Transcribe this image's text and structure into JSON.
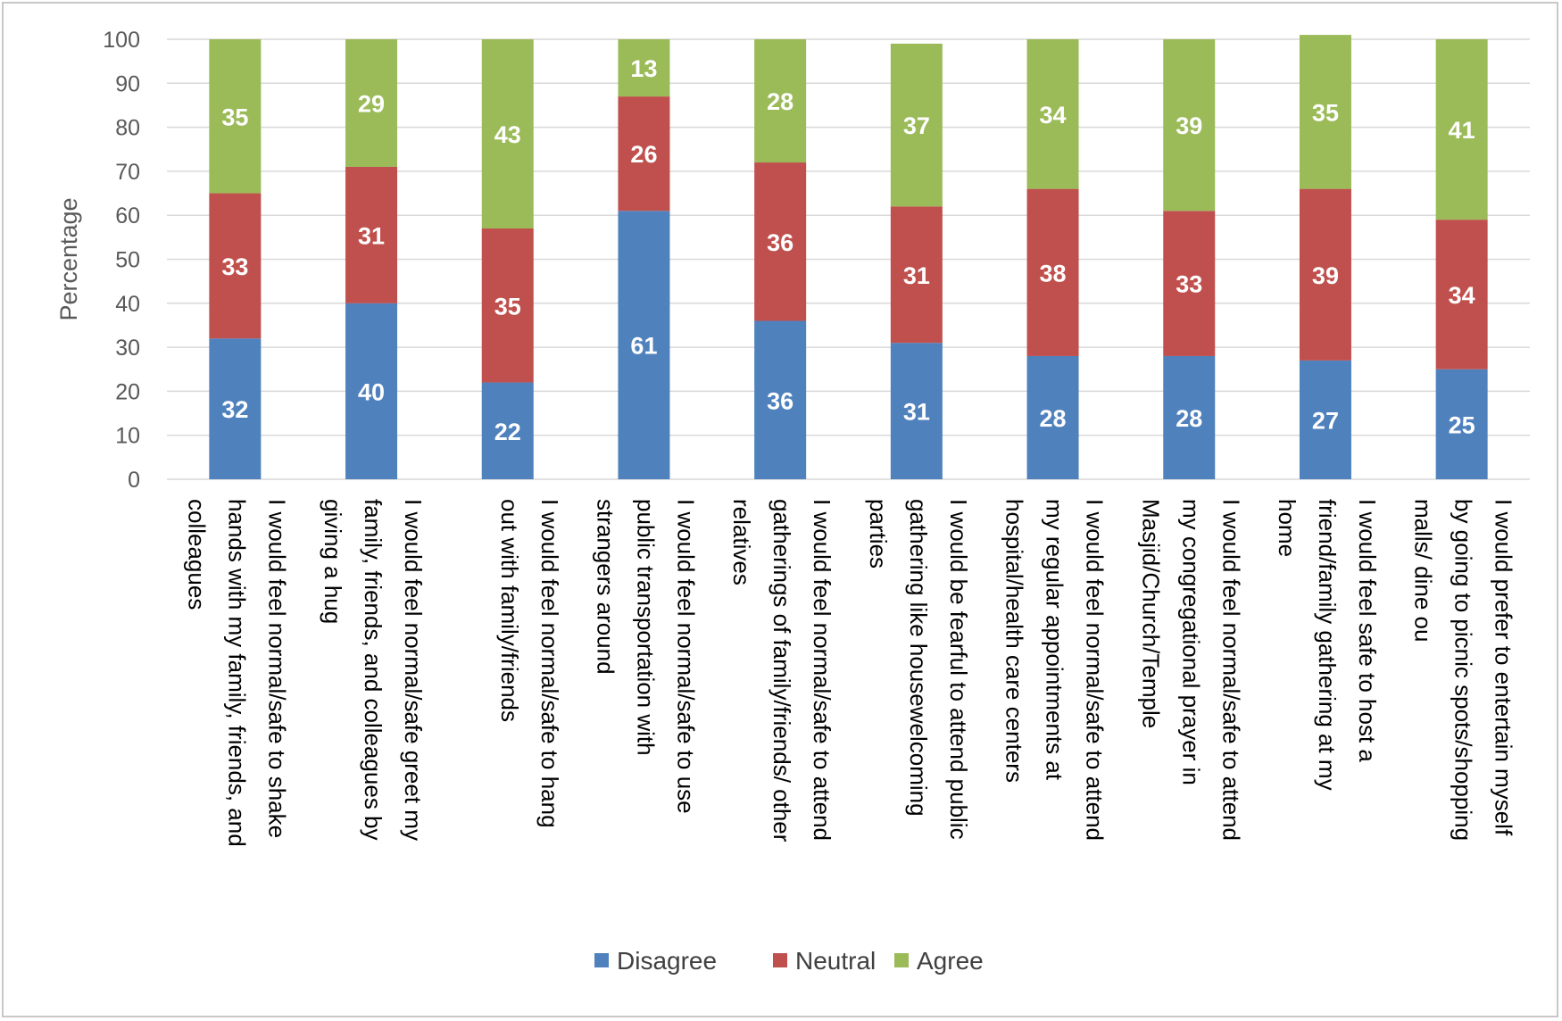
{
  "chart_data": {
    "type": "bar",
    "stacked": true,
    "title": "",
    "xlabel": "",
    "ylabel": "Percentage",
    "ylim": [
      0,
      100
    ],
    "yticks": [
      0,
      10,
      20,
      30,
      40,
      50,
      60,
      70,
      80,
      90,
      100
    ],
    "grid": true,
    "legend_position": "bottom",
    "categories": [
      "I would feel normal/safe to shake hands with my family, friends, and colleagues",
      "I would feel normal/safe greet my family, friends, and colleagues by giving a hug",
      "I would feel normal/safe to hang out with family/friends",
      "I would feel normal/safe to use public transportation with strangers around",
      "I would feel normal/safe to attend gatherings of family/friends/ other relatives",
      "I would be fearful to attend public gathering like housewelcoming parties",
      "I would feel normal/safe to attend my regular appointments at hospital/health care centers",
      "I would feel normal/safe to attend my congregational prayer in Masjid/Church/Temple",
      "I would feel safe to host a friend/family gathering at my home",
      "I would prefer to entertain myself by going to picnic spots/shopping malls/ dine ou"
    ],
    "category_lines": [
      [
        "I would feel normal/safe to shake",
        "hands with my family, friends, and",
        "colleagues"
      ],
      [
        "I would feel normal/safe greet my",
        "family, friends, and colleagues by",
        "giving a hug"
      ],
      [
        "I would feel normal/safe to hang",
        "out with family/friends"
      ],
      [
        "I would feel normal/safe to use",
        "public transportation with",
        "strangers around"
      ],
      [
        "I would feel normal/safe to attend",
        "gatherings of family/friends/ other",
        "relatives"
      ],
      [
        "I would be fearful to attend public",
        "gathering like housewelcoming",
        "parties"
      ],
      [
        "I would feel normal/safe to attend",
        "my regular appointments at",
        "hospital/health care centers"
      ],
      [
        "I would feel normal/safe to attend",
        "my congregational prayer in",
        "Masjid/Church/Temple"
      ],
      [
        "I would feel safe to host a",
        "friend/family gathering at my",
        "home"
      ],
      [
        "I would prefer to entertain myself",
        "by going to picnic spots/shopping",
        "malls/ dine ou"
      ]
    ],
    "series": [
      {
        "name": "Disagree",
        "color": "#4f81bd",
        "values": [
          32,
          40,
          22,
          61,
          36,
          31,
          28,
          28,
          27,
          25
        ]
      },
      {
        "name": "Neutral",
        "color": "#c0504d",
        "values": [
          33,
          31,
          35,
          26,
          36,
          31,
          38,
          33,
          39,
          34
        ]
      },
      {
        "name": "Agree",
        "color": "#9bbb59",
        "values": [
          35,
          29,
          43,
          13,
          28,
          37,
          34,
          39,
          35,
          41
        ]
      }
    ]
  }
}
